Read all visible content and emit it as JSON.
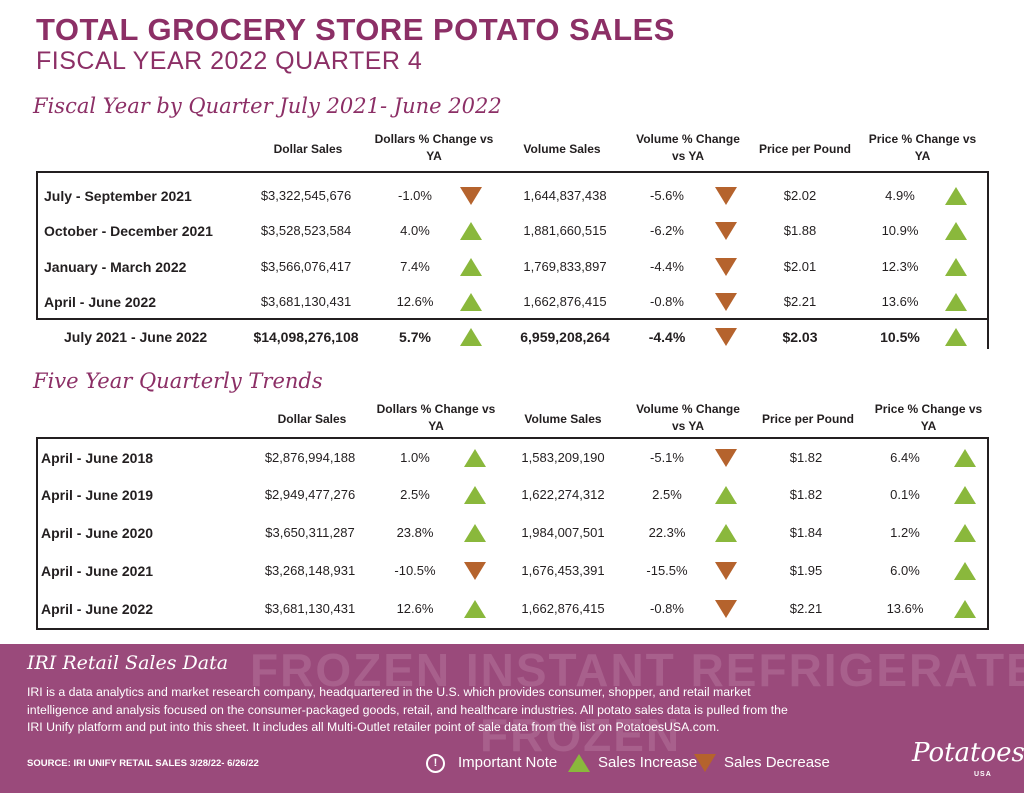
{
  "title": "TOTAL GROCERY STORE POTATO SALES",
  "subtitle": "FISCAL YEAR 2022 QUARTER 4",
  "colors": {
    "brand": "#8c2f66",
    "increase": "#8ab83c",
    "decrease": "#b5632d",
    "footer": "#9a4a7b"
  },
  "headers": {
    "dollar_sales": "Dollar Sales",
    "dollars_change": "Dollars % Change vs YA",
    "volume_sales": "Volume Sales",
    "volume_change": "Volume % Change vs YA",
    "price": "Price per Pound",
    "price_change": "Price % Change vs YA"
  },
  "table1": {
    "title": "Fiscal Year by Quarter July 2021- June 2022",
    "rows": [
      {
        "label": "July - September 2021",
        "dollar": "$3,322,545,676",
        "dchg": "-1.0%",
        "dtrend": "down",
        "volume": "1,644,837,438",
        "vchg": "-5.6%",
        "vtrend": "down",
        "price": "$2.02",
        "pchg": "4.9%",
        "ptrend": "up"
      },
      {
        "label": "October - December 2021",
        "dollar": "$3,528,523,584",
        "dchg": "4.0%",
        "dtrend": "up",
        "volume": "1,881,660,515",
        "vchg": "-6.2%",
        "vtrend": "down",
        "price": "$1.88",
        "pchg": "10.9%",
        "ptrend": "up"
      },
      {
        "label": "January - March 2022",
        "dollar": "$3,566,076,417",
        "dchg": "7.4%",
        "dtrend": "up",
        "volume": "1,769,833,897",
        "vchg": "-4.4%",
        "vtrend": "down",
        "price": "$2.01",
        "pchg": "12.3%",
        "ptrend": "up"
      },
      {
        "label": "April - June 2022",
        "dollar": "$3,681,130,431",
        "dchg": "12.6%",
        "dtrend": "up",
        "volume": "1,662,876,415",
        "vchg": "-0.8%",
        "vtrend": "down",
        "price": "$2.21",
        "pchg": "13.6%",
        "ptrend": "up"
      }
    ],
    "total": {
      "label": "July 2021 - June 2022",
      "dollar": "$14,098,276,108",
      "dchg": "5.7%",
      "dtrend": "up",
      "volume": "6,959,208,264",
      "vchg": "-4.4%",
      "vtrend": "down",
      "price": "$2.03",
      "pchg": "10.5%",
      "ptrend": "up"
    }
  },
  "table2": {
    "title": "Five Year Quarterly Trends",
    "rows": [
      {
        "label": "April - June 2018",
        "dollar": "$2,876,994,188",
        "dchg": "1.0%",
        "dtrend": "up",
        "volume": "1,583,209,190",
        "vchg": "-5.1%",
        "vtrend": "down",
        "price": "$1.82",
        "pchg": "6.4%",
        "ptrend": "up"
      },
      {
        "label": "April - June 2019",
        "dollar": "$2,949,477,276",
        "dchg": "2.5%",
        "dtrend": "up",
        "volume": "1,622,274,312",
        "vchg": "2.5%",
        "vtrend": "up",
        "price": "$1.82",
        "pchg": "0.1%",
        "ptrend": "up"
      },
      {
        "label": "April - June 2020",
        "dollar": "$3,650,311,287",
        "dchg": "23.8%",
        "dtrend": "up",
        "volume": "1,984,007,501",
        "vchg": "22.3%",
        "vtrend": "up",
        "price": "$1.84",
        "pchg": "1.2%",
        "ptrend": "up"
      },
      {
        "label": "April - June 2021",
        "dollar": "$3,268,148,931",
        "dchg": "-10.5%",
        "dtrend": "down",
        "volume": "1,676,453,391",
        "vchg": "-15.5%",
        "vtrend": "down",
        "price": "$1.95",
        "pchg": "6.0%",
        "ptrend": "up"
      },
      {
        "label": "April - June 2022",
        "dollar": "$3,681,130,431",
        "dchg": "12.6%",
        "dtrend": "up",
        "volume": "1,662,876,415",
        "vchg": "-0.8%",
        "vtrend": "down",
        "price": "$2.21",
        "pchg": "13.6%",
        "ptrend": "up"
      }
    ]
  },
  "footer": {
    "title": "IRI Retail Sales Data",
    "watermark": "FROZEN INSTANT REFRIGERATED",
    "watermark2": "FROZEN",
    "text": "IRI is a data analytics and market research company, headquartered in the U.S. which provides consumer, shopper, and retail market intelligence and analysis focused on the consumer-packaged goods, retail, and healthcare industries. All potato sales data is pulled from the IRI Unify platform and put into this sheet. It includes all Multi-Outlet retailer point of sale data from the list on PotatoesUSA.com.",
    "source": "SOURCE: IRI UNIFY RETAIL SALES 3/28/22- 6/26/22",
    "legend": {
      "note": "Important Note",
      "increase": "Sales Increase",
      "decrease": "Sales Decrease",
      "note_icon": "info-icon"
    },
    "logo": "Potatoes",
    "logo_sub": "USA"
  }
}
